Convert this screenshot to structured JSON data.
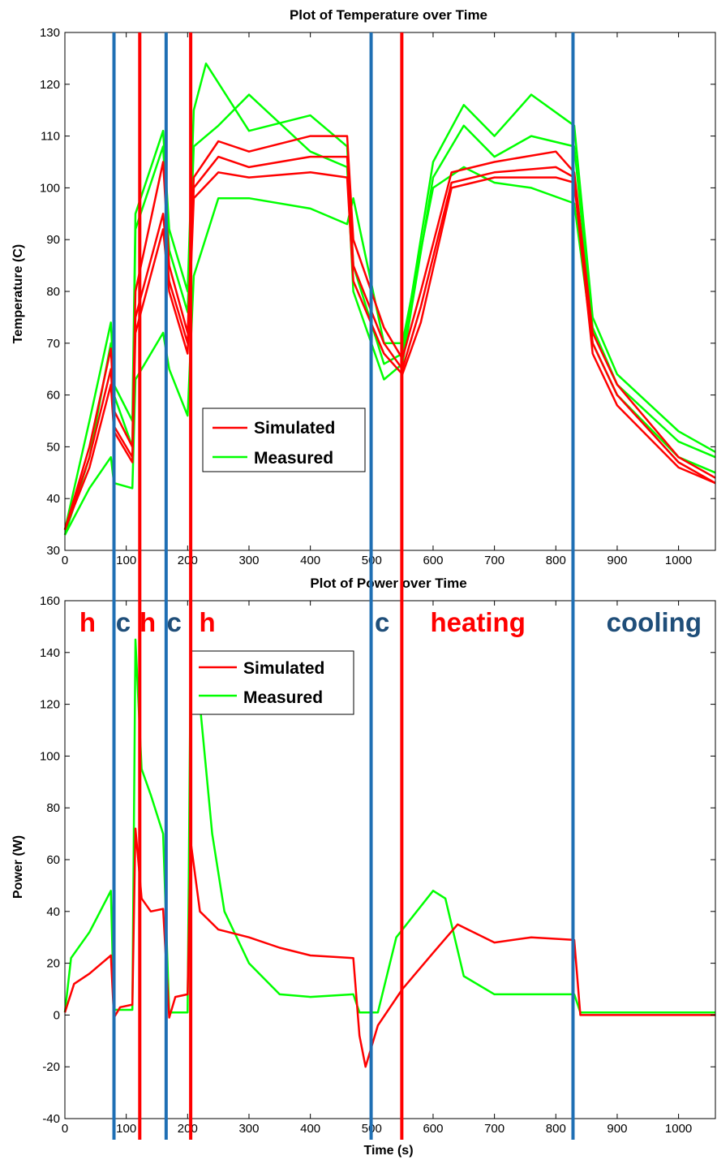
{
  "colors": {
    "simulated": "#ff0000",
    "measured": "#00ff00",
    "marker_blue": "#1f6fb4",
    "marker_red": "#ff0000",
    "phase_heating": "#ff0000",
    "phase_cooling": "#1f4e79"
  },
  "chart_data": [
    {
      "type": "line",
      "title": "Plot of Temperature over Time",
      "xlabel": "",
      "ylabel": "Temperature (C)",
      "xlim": [
        0,
        1060
      ],
      "ylim": [
        30,
        130
      ],
      "xticks": [
        0,
        100,
        200,
        300,
        400,
        500,
        600,
        700,
        800,
        900,
        1000
      ],
      "yticks": [
        30,
        40,
        50,
        60,
        70,
        80,
        90,
        100,
        110,
        120,
        130
      ],
      "grid": false,
      "legend": {
        "placement": "center-left",
        "entries": [
          "Simulated",
          "Measured"
        ]
      },
      "series": [
        {
          "name": "Simulated",
          "color": "red",
          "runs": [
            [
              [
                0,
                34
              ],
              [
                40,
                50
              ],
              [
                75,
                69
              ],
              [
                80,
                57
              ],
              [
                110,
                50
              ],
              [
                115,
                80
              ],
              [
                160,
                105
              ],
              [
                170,
                85
              ],
              [
                200,
                72
              ],
              [
                210,
                102
              ],
              [
                250,
                109
              ],
              [
                300,
                107
              ],
              [
                400,
                110
              ],
              [
                460,
                110
              ],
              [
                470,
                90
              ],
              [
                520,
                73
              ],
              [
                550,
                67
              ],
              [
                580,
                80
              ],
              [
                630,
                103
              ],
              [
                700,
                105
              ],
              [
                800,
                107
              ],
              [
                830,
                103
              ],
              [
                860,
                72
              ],
              [
                900,
                62
              ],
              [
                1000,
                48
              ],
              [
                1060,
                44
              ]
            ],
            [
              [
                0,
                34
              ],
              [
                40,
                48
              ],
              [
                75,
                65
              ],
              [
                80,
                54
              ],
              [
                110,
                48
              ],
              [
                115,
                75
              ],
              [
                160,
                95
              ],
              [
                170,
                82
              ],
              [
                200,
                70
              ],
              [
                210,
                100
              ],
              [
                250,
                106
              ],
              [
                300,
                104
              ],
              [
                400,
                106
              ],
              [
                460,
                106
              ],
              [
                470,
                85
              ],
              [
                520,
                70
              ],
              [
                550,
                65
              ],
              [
                580,
                77
              ],
              [
                630,
                101
              ],
              [
                700,
                103
              ],
              [
                800,
                104
              ],
              [
                830,
                102
              ],
              [
                860,
                70
              ],
              [
                900,
                60
              ],
              [
                1000,
                47
              ],
              [
                1060,
                43
              ]
            ],
            [
              [
                0,
                34
              ],
              [
                40,
                46
              ],
              [
                75,
                62
              ],
              [
                80,
                53
              ],
              [
                110,
                47
              ],
              [
                115,
                72
              ],
              [
                160,
                92
              ],
              [
                170,
                80
              ],
              [
                200,
                68
              ],
              [
                210,
                98
              ],
              [
                250,
                103
              ],
              [
                300,
                102
              ],
              [
                400,
                103
              ],
              [
                460,
                102
              ],
              [
                470,
                82
              ],
              [
                520,
                68
              ],
              [
                550,
                64
              ],
              [
                580,
                74
              ],
              [
                630,
                100
              ],
              [
                700,
                102
              ],
              [
                800,
                102
              ],
              [
                830,
                101
              ],
              [
                860,
                68
              ],
              [
                900,
                58
              ],
              [
                1000,
                46
              ],
              [
                1060,
                43
              ]
            ]
          ]
        },
        {
          "name": "Measured",
          "color": "green",
          "runs": [
            [
              [
                0,
                34
              ],
              [
                40,
                55
              ],
              [
                75,
                74
              ],
              [
                80,
                62
              ],
              [
                110,
                55
              ],
              [
                115,
                95
              ],
              [
                160,
                111
              ],
              [
                170,
                92
              ],
              [
                200,
                80
              ],
              [
                210,
                115
              ],
              [
                230,
                124
              ],
              [
                300,
                111
              ],
              [
                400,
                114
              ],
              [
                460,
                108
              ],
              [
                470,
                85
              ],
              [
                520,
                66
              ],
              [
                550,
                68
              ],
              [
                600,
                105
              ],
              [
                650,
                116
              ],
              [
                700,
                110
              ],
              [
                760,
                118
              ],
              [
                830,
                112
              ],
              [
                860,
                75
              ],
              [
                900,
                64
              ],
              [
                1000,
                53
              ],
              [
                1060,
                49
              ]
            ],
            [
              [
                0,
                33
              ],
              [
                40,
                48
              ],
              [
                75,
                70
              ],
              [
                80,
                60
              ],
              [
                110,
                50
              ],
              [
                115,
                92
              ],
              [
                160,
                108
              ],
              [
                170,
                88
              ],
              [
                200,
                76
              ],
              [
                210,
                108
              ],
              [
                250,
                112
              ],
              [
                300,
                118
              ],
              [
                400,
                107
              ],
              [
                460,
                104
              ],
              [
                470,
                80
              ],
              [
                520,
                63
              ],
              [
                550,
                66
              ],
              [
                600,
                102
              ],
              [
                650,
                112
              ],
              [
                700,
                106
              ],
              [
                760,
                110
              ],
              [
                830,
                108
              ],
              [
                860,
                73
              ],
              [
                900,
                62
              ],
              [
                1000,
                51
              ],
              [
                1060,
                48
              ]
            ],
            [
              [
                0,
                33
              ],
              [
                40,
                42
              ],
              [
                75,
                48
              ],
              [
                80,
                43
              ],
              [
                110,
                42
              ],
              [
                115,
                63
              ],
              [
                160,
                72
              ],
              [
                170,
                65
              ],
              [
                200,
                56
              ],
              [
                210,
                83
              ],
              [
                250,
                98
              ],
              [
                300,
                98
              ],
              [
                400,
                96
              ],
              [
                460,
                93
              ],
              [
                470,
                98
              ],
              [
                520,
                70
              ],
              [
                550,
                70
              ],
              [
                600,
                100
              ],
              [
                650,
                104
              ],
              [
                700,
                101
              ],
              [
                760,
                100
              ],
              [
                830,
                97
              ],
              [
                860,
                70
              ],
              [
                900,
                60
              ],
              [
                1000,
                48
              ],
              [
                1060,
                45
              ]
            ]
          ]
        }
      ]
    },
    {
      "type": "line",
      "title": "Plot of Power over Time",
      "xlabel": "Time (s)",
      "ylabel": "Power (W)",
      "xlim": [
        0,
        1060
      ],
      "ylim": [
        -40,
        160
      ],
      "xticks": [
        0,
        100,
        200,
        300,
        400,
        500,
        600,
        700,
        800,
        900,
        1000
      ],
      "yticks": [
        -40,
        -20,
        0,
        20,
        40,
        60,
        80,
        100,
        120,
        140,
        160
      ],
      "grid": false,
      "legend": {
        "placement": "top-center",
        "entries": [
          "Simulated",
          "Measured"
        ]
      },
      "series": [
        {
          "name": "Simulated",
          "color": "red",
          "values": [
            [
              0,
              1
            ],
            [
              15,
              12
            ],
            [
              40,
              16
            ],
            [
              75,
              23
            ],
            [
              80,
              -1
            ],
            [
              90,
              3
            ],
            [
              110,
              4
            ],
            [
              115,
              72
            ],
            [
              125,
              45
            ],
            [
              140,
              40
            ],
            [
              160,
              41
            ],
            [
              170,
              -1
            ],
            [
              180,
              7
            ],
            [
              200,
              8
            ],
            [
              205,
              67
            ],
            [
              220,
              40
            ],
            [
              250,
              33
            ],
            [
              300,
              30
            ],
            [
              350,
              26
            ],
            [
              400,
              23
            ],
            [
              470,
              22
            ],
            [
              480,
              -8
            ],
            [
              490,
              -20
            ],
            [
              510,
              -4
            ],
            [
              550,
              10
            ],
            [
              600,
              24
            ],
            [
              640,
              35
            ],
            [
              700,
              28
            ],
            [
              760,
              30
            ],
            [
              830,
              29
            ],
            [
              840,
              0
            ],
            [
              1060,
              0
            ]
          ]
        },
        {
          "name": "Measured",
          "color": "green",
          "values": [
            [
              0,
              1
            ],
            [
              10,
              22
            ],
            [
              40,
              32
            ],
            [
              75,
              48
            ],
            [
              80,
              2
            ],
            [
              110,
              2
            ],
            [
              115,
              145
            ],
            [
              125,
              95
            ],
            [
              140,
              85
            ],
            [
              160,
              70
            ],
            [
              170,
              1
            ],
            [
              200,
              1
            ],
            [
              205,
              140
            ],
            [
              220,
              120
            ],
            [
              240,
              70
            ],
            [
              260,
              40
            ],
            [
              300,
              20
            ],
            [
              350,
              8
            ],
            [
              400,
              7
            ],
            [
              470,
              8
            ],
            [
              480,
              1
            ],
            [
              510,
              1
            ],
            [
              540,
              30
            ],
            [
              600,
              48
            ],
            [
              620,
              45
            ],
            [
              650,
              15
            ],
            [
              700,
              8
            ],
            [
              760,
              8
            ],
            [
              830,
              8
            ],
            [
              840,
              1
            ],
            [
              1060,
              1
            ]
          ]
        }
      ]
    }
  ],
  "markers": {
    "blue_x": [
      80,
      165,
      499,
      828
    ],
    "red_x": [
      122,
      205,
      549
    ]
  },
  "phase_labels": [
    {
      "text": "h",
      "x": 37,
      "color": "heating"
    },
    {
      "text": "c",
      "x": 95,
      "color": "cooling"
    },
    {
      "text": "h",
      "x": 135,
      "color": "heating"
    },
    {
      "text": "c",
      "x": 178,
      "color": "cooling"
    },
    {
      "text": "h",
      "x": 232,
      "color": "heating"
    },
    {
      "text": "c",
      "x": 517,
      "color": "cooling"
    },
    {
      "text": "heating",
      "x": 673,
      "color": "heating"
    },
    {
      "text": "cooling",
      "x": 960,
      "color": "cooling"
    }
  ]
}
